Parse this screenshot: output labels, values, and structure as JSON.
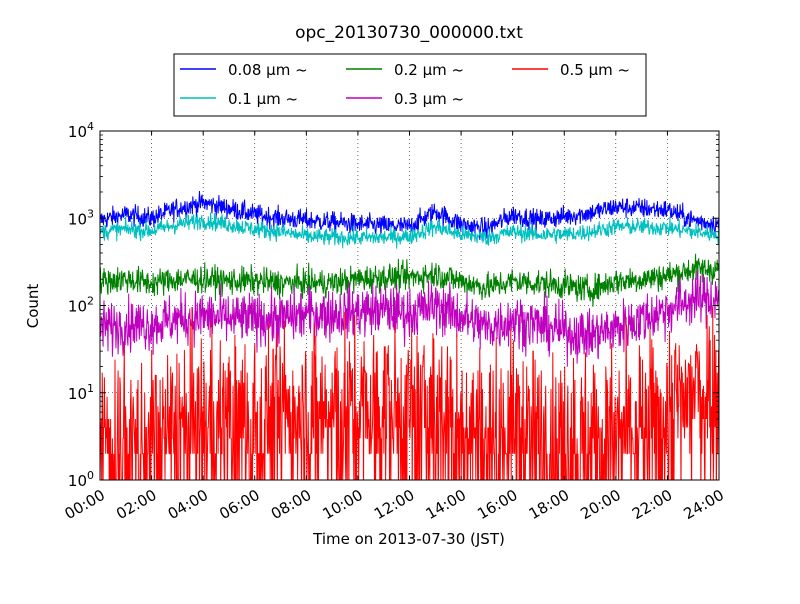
{
  "chart_data": {
    "type": "line",
    "title": "opc_20130730_000000.txt",
    "xlabel": "Time on 2013-07-30 (JST)",
    "ylabel": "Count",
    "yscale": "log",
    "ylim": [
      1,
      10000
    ],
    "xlim": [
      "00:00",
      "24:00"
    ],
    "grid": true,
    "legend_position": "top-outside",
    "x_ticks": [
      "00:00",
      "02:00",
      "04:00",
      "06:00",
      "08:00",
      "10:00",
      "12:00",
      "14:00",
      "16:00",
      "18:00",
      "20:00",
      "22:00",
      "24:00"
    ],
    "y_ticks": [
      {
        "base": "10",
        "exp": "0",
        "value": 1
      },
      {
        "base": "10",
        "exp": "1",
        "value": 10
      },
      {
        "base": "10",
        "exp": "2",
        "value": 100
      },
      {
        "base": "10",
        "exp": "3",
        "value": 1000
      },
      {
        "base": "10",
        "exp": "4",
        "value": 10000
      }
    ],
    "x": [
      "00:00",
      "01:00",
      "02:00",
      "03:00",
      "04:00",
      "05:00",
      "06:00",
      "07:00",
      "08:00",
      "09:00",
      "10:00",
      "11:00",
      "12:00",
      "13:00",
      "14:00",
      "15:00",
      "16:00",
      "17:00",
      "18:00",
      "19:00",
      "20:00",
      "21:00",
      "22:00",
      "23:00",
      "24:00"
    ],
    "series": [
      {
        "name": "0.08 μm ~",
        "color": "#0000ff",
        "noise": 0.06,
        "values": [
          950,
          1100,
          1000,
          1300,
          1500,
          1300,
          1100,
          1000,
          950,
          900,
          850,
          820,
          800,
          1200,
          850,
          750,
          1100,
          950,
          1050,
          1150,
          1350,
          1300,
          1250,
          950,
          850
        ]
      },
      {
        "name": "0.1 μm ~",
        "color": "#00bfbf",
        "noise": 0.05,
        "values": [
          700,
          750,
          720,
          850,
          950,
          850,
          750,
          700,
          620,
          600,
          600,
          600,
          620,
          800,
          650,
          600,
          700,
          650,
          650,
          700,
          800,
          800,
          780,
          700,
          650
        ]
      },
      {
        "name": "0.2 μm ~",
        "color": "#008000",
        "noise": 0.08,
        "values": [
          190,
          200,
          180,
          200,
          200,
          190,
          190,
          180,
          180,
          180,
          200,
          210,
          210,
          230,
          190,
          160,
          190,
          180,
          170,
          150,
          190,
          200,
          220,
          260,
          260
        ]
      },
      {
        "name": "0.3 μm ~",
        "color": "#bf00bf",
        "noise": 0.15,
        "values": [
          55,
          60,
          60,
          70,
          75,
          70,
          70,
          70,
          80,
          80,
          85,
          90,
          80,
          100,
          75,
          55,
          70,
          60,
          50,
          45,
          55,
          70,
          90,
          120,
          120
        ]
      },
      {
        "name": "0.5 μm ~",
        "color": "#ff0000",
        "noise": 0.5,
        "values": [
          3,
          3,
          3,
          4,
          5,
          5,
          5,
          6,
          7,
          6,
          6,
          6,
          5,
          7,
          5,
          3,
          4,
          3,
          3,
          3,
          3,
          4,
          6,
          10,
          14
        ]
      }
    ]
  }
}
